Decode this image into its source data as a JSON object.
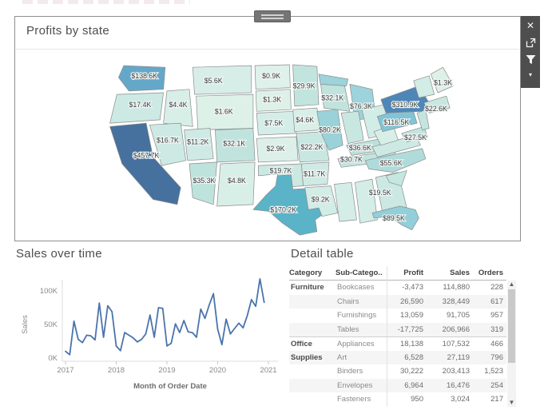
{
  "map_card": {
    "title": "Profits by state"
  },
  "toolbar": {
    "close_label": "✕",
    "caret_label": "▾"
  },
  "sales_section": {
    "title": "Sales over time"
  },
  "table_section": {
    "title": "Detail table"
  },
  "chart_data": [
    {
      "type": "choropleth",
      "title": "Profits by state",
      "unit": "profit, USD thousands",
      "states": {
        "WA": {
          "label": "$138.6K",
          "value": 138.6,
          "fill": "#64a8c9"
        },
        "OR": {
          "label": "$17.4K",
          "value": 17.4,
          "fill": "#cce9e3"
        },
        "CA": {
          "label": "$457.7K",
          "value": 457.7,
          "fill": "#46719e"
        },
        "ID": {
          "label": "$4.4K",
          "value": 4.4,
          "fill": "#d8efe8"
        },
        "NV": {
          "label": "$16.7K",
          "value": 16.7,
          "fill": "#cde9e3"
        },
        "MT": {
          "label": "$5.6K",
          "value": 5.6,
          "fill": "#d7eee8"
        },
        "WY": {
          "label": "$1.6K",
          "value": 1.6,
          "fill": "#ddf1e9"
        },
        "UT": {
          "label": "$11.2K",
          "value": 11.2,
          "fill": "#cfeae4"
        },
        "AZ": {
          "label": "$35.3K",
          "value": 35.3,
          "fill": "#bee2dc"
        },
        "NM": {
          "label": "$4.8K",
          "value": 4.8,
          "fill": "#d8efe8"
        },
        "CO": {
          "label": "$32.1K",
          "value": 32.1,
          "fill": "#c0e3dd"
        },
        "ND": {
          "label": "$0.9K",
          "value": 0.9,
          "fill": "#def1ea"
        },
        "SD": {
          "label": "$1.3K",
          "value": 1.3,
          "fill": "#ddf1e9"
        },
        "NE": {
          "label": "$7.5K",
          "value": 7.5,
          "fill": "#d4ede7"
        },
        "KS": {
          "label": "$2.9K",
          "value": 2.9,
          "fill": "#dcf0e9"
        },
        "OK": {
          "label": "$19.7K",
          "value": 19.7,
          "fill": "#cbe8e2"
        },
        "TX": {
          "label": "$170.2K",
          "value": 170.2,
          "fill": "#5bb3c8"
        },
        "MN": {
          "label": "$29.9K",
          "value": 29.9,
          "fill": "#c2e4de"
        },
        "IA": {
          "label": "$4.6K",
          "value": 4.6,
          "fill": "#d8efe8"
        },
        "MO": {
          "label": "$22.2K",
          "value": 22.2,
          "fill": "#c8e7e1"
        },
        "AR": {
          "label": "$11.7K",
          "value": 11.7,
          "fill": "#cfeae4"
        },
        "LA": {
          "label": "$9.2K",
          "value": 9.2,
          "fill": "#d2ece6"
        },
        "WI": {
          "label": "$32.1K",
          "value": 32.1,
          "fill": "#c0e3dd"
        },
        "IL": {
          "label": "$80.2K",
          "value": 80.2,
          "fill": "#9ad2d9"
        },
        "MI": {
          "label": "$76.3K",
          "value": 76.3,
          "fill": "#9dd3da"
        },
        "IN": {
          "fill": "#c9e7e1"
        },
        "OH": {
          "fill": "#d2ece6"
        },
        "KY": {
          "label": "$36.6K",
          "value": 36.6,
          "fill": "#bce1db"
        },
        "TN": {
          "label": "$30.7K",
          "value": 30.7,
          "fill": "#c2e4de"
        },
        "MS": {
          "fill": "#d4ede7"
        },
        "AL": {
          "fill": "#d4ede7"
        },
        "GA": {
          "label": "$19.5K",
          "value": 19.5,
          "fill": "#cbe8e2"
        },
        "FL": {
          "label": "$89.5K",
          "value": 89.5,
          "fill": "#92cfd8"
        },
        "SC": {
          "fill": "#c6e6e0"
        },
        "NC": {
          "label": "$55.6K",
          "value": 55.6,
          "fill": "#b0dbdb"
        },
        "VA": {
          "fill": "#cde9e3"
        },
        "WV": {
          "fill": "#d8efe8"
        },
        "MD": {
          "label": "$27.5K",
          "value": 27.5,
          "fill": "#c4e5df"
        },
        "NJ": {
          "fill": "#c4e5df"
        },
        "PA": {
          "label": "$116.5K",
          "value": 116.5,
          "fill": "#82c4d5"
        },
        "NY": {
          "label": "$310.9K",
          "value": 310.9,
          "fill": "#4e86b8"
        },
        "VTNH": {
          "fill": "#d2ece6"
        },
        "MACT": {
          "label": "$22.6K",
          "value": 22.6,
          "fill": "#c8e7e1"
        },
        "ME": {
          "label": "$1.3K",
          "value": 1.3,
          "fill": "#ddf1e9"
        }
      }
    },
    {
      "type": "line",
      "title": "Sales over time",
      "xlabel": "Month of Order Date",
      "ylabel": "Sales",
      "yticks": [
        "0K",
        "50K",
        "100K"
      ],
      "xticks": [
        "2017",
        "2018",
        "2019",
        "2020",
        "2021"
      ],
      "ylim": [
        0,
        125
      ],
      "line_color": "#4a74ab",
      "x_unit": "month, Jan 2017 - Dec 2020",
      "values_k": [
        10,
        5,
        55,
        28,
        23,
        34,
        33,
        27,
        82,
        31,
        78,
        69,
        18,
        11,
        38,
        34,
        30,
        24,
        28,
        36,
        64,
        31,
        75,
        74,
        18,
        22,
        51,
        38,
        56,
        39,
        38,
        31,
        73,
        59,
        79,
        96,
        43,
        20,
        58,
        36,
        44,
        52,
        45,
        63,
        87,
        77,
        118,
        83
      ]
    },
    {
      "type": "table",
      "title": "Detail table",
      "columns": [
        "Category",
        "Sub-Catego..",
        "Profit",
        "Sales",
        "Orders"
      ],
      "rows": [
        {
          "category": "Furniture",
          "sub": "Bookcases",
          "profit": "-3,473",
          "sales": "114,880",
          "orders": "228"
        },
        {
          "category": "",
          "sub": "Chairs",
          "profit": "26,590",
          "sales": "328,449",
          "orders": "617"
        },
        {
          "category": "",
          "sub": "Furnishings",
          "profit": "13,059",
          "sales": "91,705",
          "orders": "957"
        },
        {
          "category": "",
          "sub": "Tables",
          "profit": "-17,725",
          "sales": "206,966",
          "orders": "319"
        },
        {
          "category": "Office",
          "sub": "Appliances",
          "profit": "18,138",
          "sales": "107,532",
          "orders": "466",
          "group_start": true
        },
        {
          "category": "Supplies",
          "sub": "Art",
          "profit": "6,528",
          "sales": "27,119",
          "orders": "796"
        },
        {
          "category": "",
          "sub": "Binders",
          "profit": "30,222",
          "sales": "203,413",
          "orders": "1,523"
        },
        {
          "category": "",
          "sub": "Envelopes",
          "profit": "6,964",
          "sales": "16,476",
          "orders": "254"
        },
        {
          "category": "",
          "sub": "Fasteners",
          "profit": "950",
          "sales": "3,024",
          "orders": "217"
        }
      ]
    }
  ]
}
